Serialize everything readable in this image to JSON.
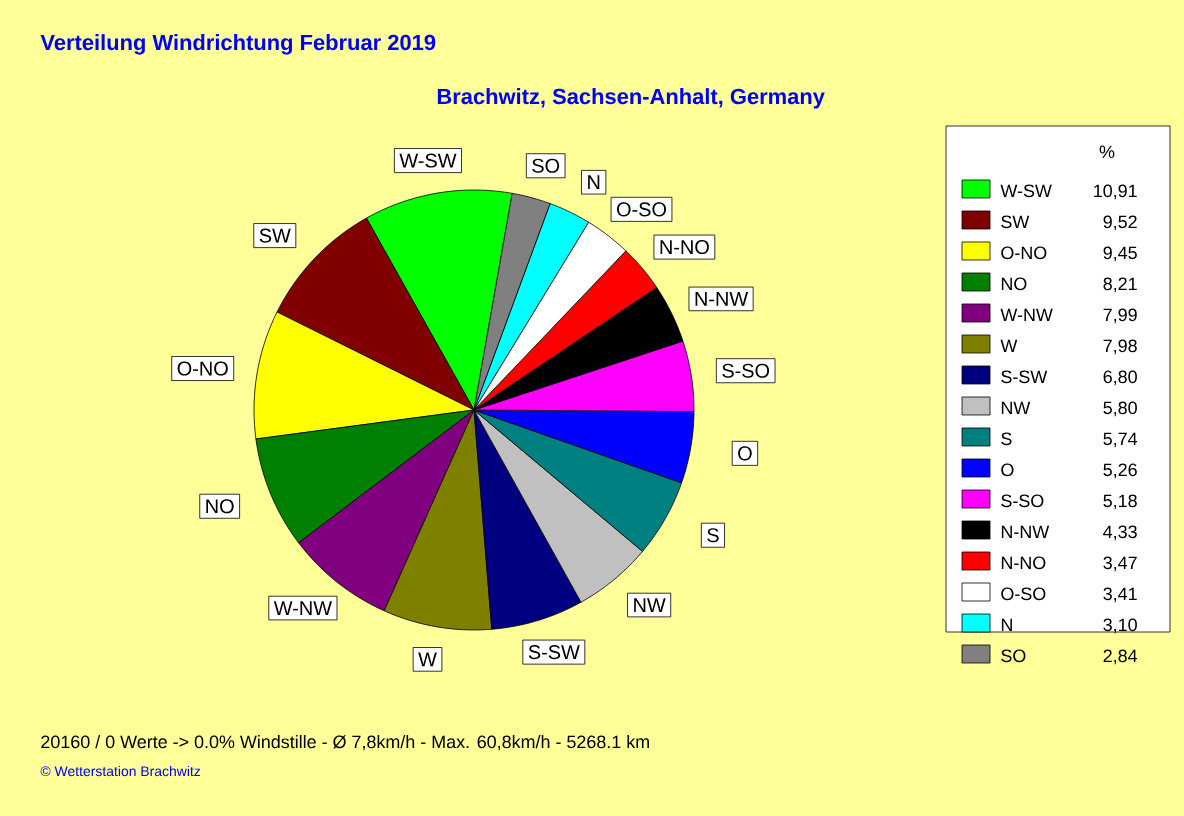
{
  "chart_data": {
    "type": "pie",
    "title": "Verteilung Windrichtung   Februar 2019",
    "subtitle": "Brachwitz, Sachsen-Anhalt, Germany",
    "categories": [
      "W-SW",
      "SW",
      "O-NO",
      "NO",
      "W-NW",
      "W",
      "S-SW",
      "NW",
      "S",
      "O",
      "S-SO",
      "N-NW",
      "N-NO",
      "O-SO",
      "N",
      "SO"
    ],
    "values": [
      10.91,
      9.52,
      9.45,
      8.21,
      7.99,
      7.98,
      6.8,
      5.8,
      5.74,
      5.26,
      5.18,
      4.33,
      3.47,
      3.41,
      3.1,
      2.84
    ],
    "value_labels": [
      "10,91",
      "9,52",
      "9,45",
      "8,21",
      "7,99",
      "7,98",
      "6,80",
      "5,80",
      "5,74",
      "5,26",
      "5,18",
      "4,33",
      "3,47",
      "3,41",
      "3,10",
      "2,84"
    ],
    "colors": [
      "#00ff00",
      "#800000",
      "#ffff00",
      "#008000",
      "#800080",
      "#808000",
      "#000080",
      "#c0c0c0",
      "#008080",
      "#0000ff",
      "#ff00ff",
      "#000000",
      "#ff0000",
      "#ffffff",
      "#00ffff",
      "#808080"
    ],
    "legend": "right",
    "legend_title": "%",
    "annotations": [
      "20160 / 0 Werte  -> 0.0% Windstille   -   Ø 7,8km/h  -  Max. 60,8km/h   -   5268.1 km",
      "© Wetterstation Brachwitz"
    ]
  }
}
